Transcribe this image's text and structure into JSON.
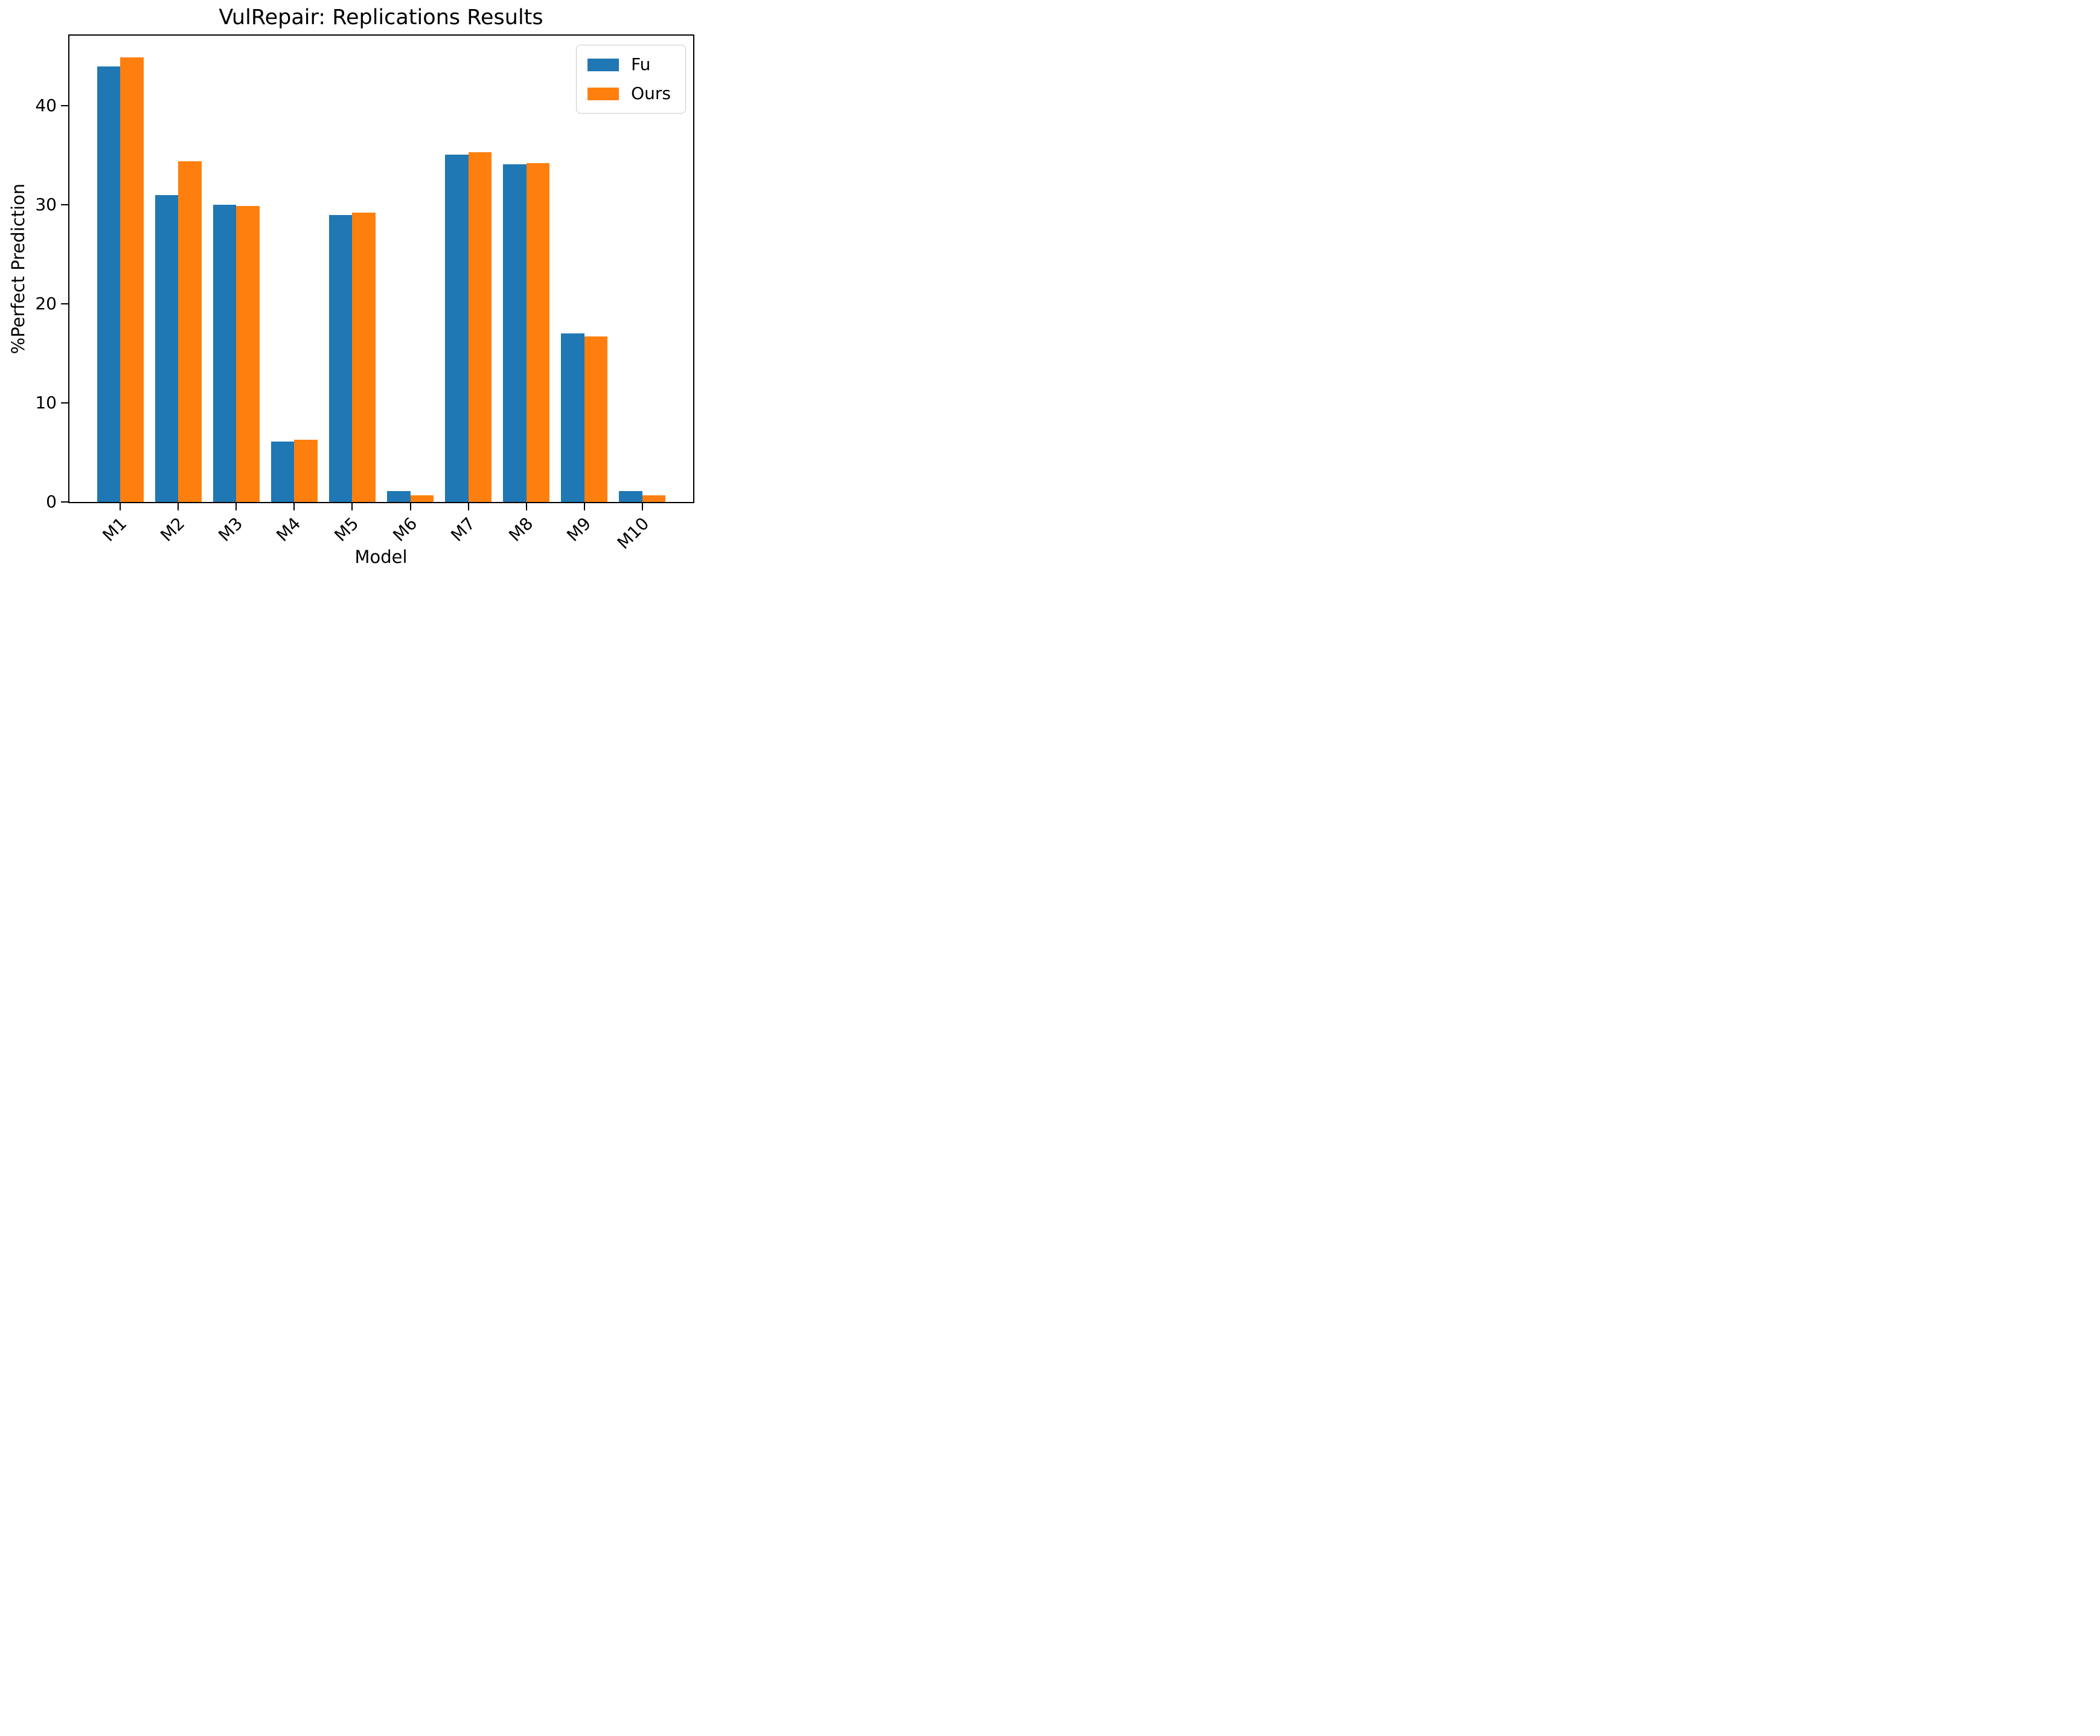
{
  "chart_data": {
    "type": "bar",
    "title": "VulRepair: Replications Results",
    "xlabel": "Model",
    "ylabel": "%Perfect Prediction",
    "categories": [
      "M1",
      "M2",
      "M3",
      "M4",
      "M5",
      "M6",
      "M7",
      "M8",
      "M9",
      "M10"
    ],
    "series": [
      {
        "name": "Fu",
        "color": "#1f77b4",
        "values": [
          44.0,
          31.0,
          30.0,
          6.1,
          29.0,
          1.1,
          35.1,
          34.1,
          17.0,
          1.1
        ]
      },
      {
        "name": "Ours",
        "color": "#ff7f0e",
        "values": [
          44.9,
          34.4,
          29.9,
          6.3,
          29.2,
          0.7,
          35.3,
          34.2,
          16.7,
          0.7
        ]
      }
    ],
    "yticks": [
      0,
      10,
      20,
      30,
      40
    ],
    "ylim": [
      0,
      47.1
    ],
    "xlim": [
      -0.878,
      9.878
    ],
    "bar_width_fraction": 0.4,
    "xtick_rotation": 45,
    "grid": false,
    "legend_position": "upper right",
    "legend_entries": [
      "Fu",
      "Ours"
    ],
    "axis_color": "#000000",
    "legend_border_color": "#c9c9c9",
    "background_color": "#ffffff"
  }
}
